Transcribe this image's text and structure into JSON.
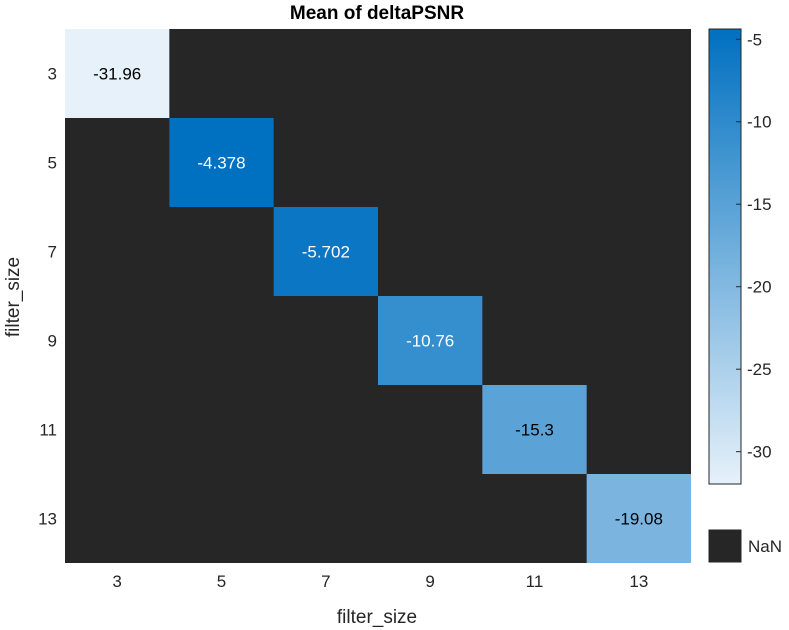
{
  "chart_data": {
    "type": "heatmap",
    "title": "Mean of deltaPSNR",
    "xlabel": "filter_size",
    "ylabel": "filter_size",
    "x_categories": [
      "3",
      "5",
      "7",
      "9",
      "11",
      "13"
    ],
    "y_categories": [
      "3",
      "5",
      "7",
      "9",
      "11",
      "13"
    ],
    "cells": [
      {
        "x": "3",
        "y": "3",
        "value": -31.96,
        "label": "-31.96"
      },
      {
        "x": "5",
        "y": "5",
        "value": -4.378,
        "label": "-4.378"
      },
      {
        "x": "7",
        "y": "7",
        "value": -5.702,
        "label": "-5.702"
      },
      {
        "x": "9",
        "y": "9",
        "value": -10.76,
        "label": "-10.76"
      },
      {
        "x": "11",
        "y": "11",
        "value": -15.3,
        "label": "-15.3"
      },
      {
        "x": "13",
        "y": "13",
        "value": -19.08,
        "label": "-19.08"
      }
    ],
    "colorbar": {
      "min": -31.96,
      "max": -4.378,
      "ticks": [
        -5,
        -10,
        -15,
        -20,
        -25,
        -30
      ],
      "tick_labels": [
        "-5",
        "-10",
        "-15",
        "-20",
        "-25",
        "-30"
      ],
      "colormap": [
        "#e6f1fa",
        "#0070c0"
      ]
    },
    "missing_label": "NaN",
    "missing_color": "#262626"
  }
}
